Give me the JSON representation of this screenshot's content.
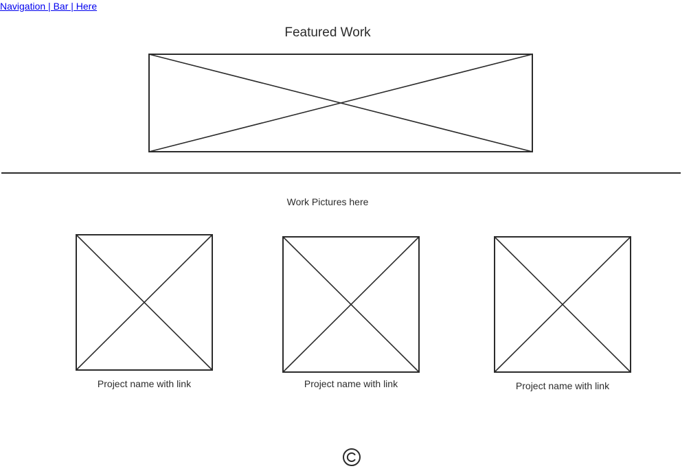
{
  "nav": {
    "label": "Navigation | Bar | Here"
  },
  "featured": {
    "title": "Featured Work"
  },
  "work": {
    "caption": "Work Pictures here",
    "projects": [
      {
        "name": "Project name with link"
      },
      {
        "name": "Project name with link"
      },
      {
        "name": "Project name with link"
      }
    ]
  },
  "footer": {
    "icon": "copyright-icon"
  },
  "colors": {
    "stroke": "#2b2b2b",
    "link": "#0000ee",
    "background": "#ffffff"
  }
}
